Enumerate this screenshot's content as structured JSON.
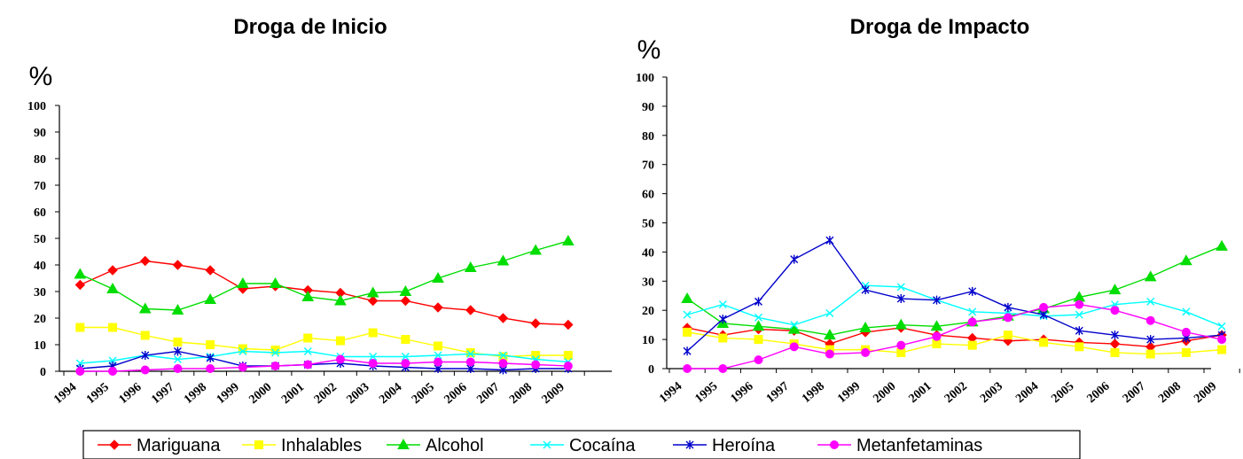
{
  "colors": {
    "Mariguana": "#ff0000",
    "Inhalables": "#ffff00",
    "Alcohol": "#00dd00",
    "Cocaína": "#00ffff",
    "Heroína": "#0000cc",
    "Metanfetaminas": "#ff00ff"
  },
  "markers": {
    "Mariguana": "diamond",
    "Inhalables": "square",
    "Alcohol": "triangle",
    "Cocaína": "x",
    "Heroína": "star",
    "Metanfetaminas": "circle"
  },
  "legend": [
    "Mariguana",
    "Inhalables",
    "Alcohol",
    "Cocaína",
    "Heroína",
    "Metanfetaminas"
  ],
  "chart_data": [
    {
      "type": "line",
      "title": "Droga de Inicio",
      "ylabel": "%",
      "ylim": [
        0,
        100
      ],
      "yticks": [
        "0",
        "10",
        "20",
        "30",
        "40",
        "50",
        "60",
        "70",
        "80",
        "90",
        "100"
      ],
      "categories": [
        "1994",
        "1995",
        "1996",
        "1997",
        "1998",
        "1999",
        "2000",
        "2001",
        "2002",
        "2003",
        "2004",
        "2005",
        "2006",
        "2007",
        "2008",
        "2009"
      ],
      "grid": false,
      "legend_position": "bottom",
      "series": [
        {
          "name": "Mariguana",
          "values": [
            32.5,
            38,
            41.5,
            40,
            38,
            31,
            32,
            30.5,
            29.5,
            26.5,
            26.5,
            24,
            23,
            20,
            18,
            17.5
          ]
        },
        {
          "name": "Inhalables",
          "values": [
            16.5,
            16.5,
            13.5,
            11,
            10,
            8.5,
            8,
            12.5,
            11.5,
            14.5,
            12,
            9.5,
            7,
            5.5,
            6,
            6
          ]
        },
        {
          "name": "Alcohol",
          "values": [
            36.5,
            31,
            23.5,
            23,
            27,
            33,
            33,
            28,
            26.5,
            29.5,
            30,
            35,
            39,
            41.5,
            45.5,
            49
          ]
        },
        {
          "name": "Cocaína",
          "values": [
            3,
            4,
            6,
            4.5,
            5.5,
            7.5,
            7,
            7.5,
            5.5,
            5.5,
            5.5,
            6,
            6.5,
            6,
            4.5,
            3.5
          ]
        },
        {
          "name": "Heroína",
          "values": [
            1,
            2,
            6,
            7.5,
            5,
            2,
            2,
            2.5,
            3,
            2,
            1.5,
            1,
            1,
            0.5,
            1,
            1
          ]
        },
        {
          "name": "Metanfetaminas",
          "values": [
            0,
            0,
            0.5,
            1,
            1,
            1.5,
            2,
            2.5,
            4.5,
            3,
            3,
            3.5,
            3.5,
            3,
            2.5,
            2
          ]
        }
      ]
    },
    {
      "type": "line",
      "title": "Droga de Impacto",
      "ylabel": "%",
      "ylim": [
        0,
        100
      ],
      "yticks": [
        "0",
        "10",
        "20",
        "30",
        "40",
        "50",
        "60",
        "70",
        "80",
        "90",
        "100"
      ],
      "categories": [
        "1994",
        "1995",
        "1996",
        "1997",
        "1998",
        "1999",
        "2000",
        "2001",
        "2002",
        "2003",
        "2004",
        "2005",
        "2006",
        "2007",
        "2008",
        "2009"
      ],
      "grid": false,
      "legend_position": "bottom",
      "series": [
        {
          "name": "Mariguana",
          "values": [
            14,
            11.5,
            13.5,
            13,
            8.5,
            12.5,
            14,
            11.5,
            10.5,
            9.5,
            10,
            9,
            8.5,
            7.5,
            9.5,
            11.5
          ]
        },
        {
          "name": "Inhalables",
          "values": [
            12.5,
            10.5,
            10,
            8.5,
            6.5,
            6.5,
            5.5,
            8.5,
            8,
            11.5,
            9,
            7.5,
            5.5,
            5,
            5.5,
            6.5
          ]
        },
        {
          "name": "Alcohol",
          "values": [
            24,
            15.5,
            14.5,
            13.5,
            11.5,
            14,
            15,
            14.5,
            16,
            18,
            20.5,
            24.5,
            27,
            31.5,
            37,
            42
          ]
        },
        {
          "name": "Cocaína",
          "values": [
            18.5,
            22,
            17.5,
            15,
            19,
            28.5,
            28,
            23.5,
            19.5,
            19,
            18,
            18.5,
            22,
            23,
            19.5,
            14.5
          ]
        },
        {
          "name": "Heroína",
          "values": [
            6,
            17,
            23,
            37.5,
            44,
            27,
            24,
            23.5,
            26.5,
            21,
            18.5,
            13,
            11.5,
            10,
            10.5,
            11.5
          ]
        },
        {
          "name": "Metanfetaminas",
          "values": [
            0,
            0,
            3,
            7.5,
            5,
            5.5,
            8,
            11,
            16,
            17.5,
            21,
            22,
            20,
            16.5,
            12.5,
            10
          ]
        }
      ]
    }
  ]
}
